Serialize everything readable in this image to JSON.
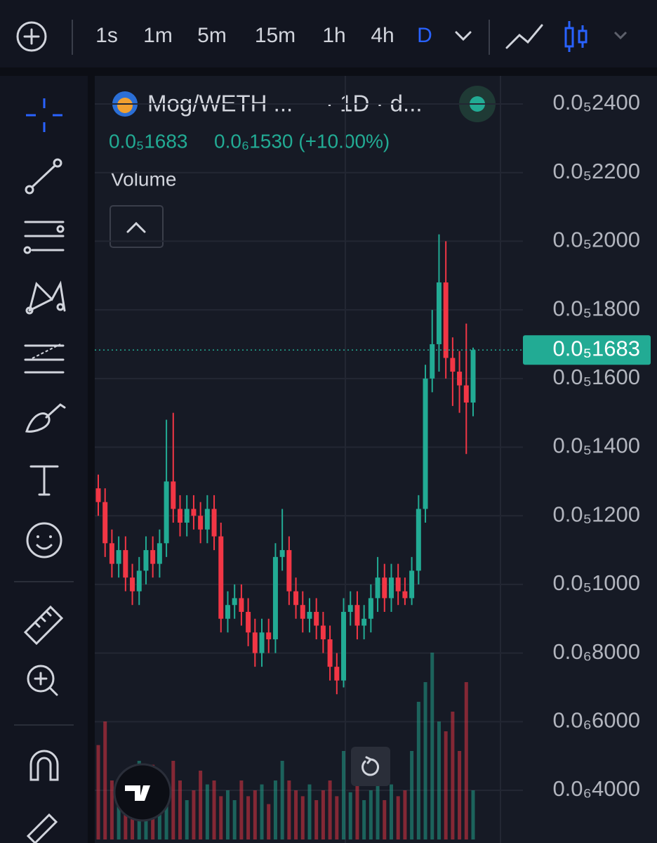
{
  "toolbar": {
    "intervals": [
      "1s",
      "1m",
      "5m",
      "15m",
      "1h",
      "4h",
      "D"
    ]
  },
  "legend": {
    "symbol": "Mog/WETH ...",
    "interval": "· 1D · d...",
    "price": "0.0₅1683",
    "change": "0.0₆1530 (+10.00%)",
    "indicator": "Volume"
  },
  "chart_data": {
    "type": "candlestick",
    "up_color": "#22ab94",
    "down_color": "#f23645",
    "grid": true,
    "ylim": [
      2.465e-07,
      2.4983e-06
    ],
    "yticks": [
      {
        "value": 2.4e-06,
        "label": "0.0₅2400"
      },
      {
        "value": 2.2e-06,
        "label": "0.0₅2200"
      },
      {
        "value": 2e-06,
        "label": "0.0₅2000"
      },
      {
        "value": 1.8e-06,
        "label": "0.0₅1800"
      },
      {
        "value": 1.6e-06,
        "label": "0.0₅1600"
      },
      {
        "value": 1.4e-06,
        "label": "0.0₅1400"
      },
      {
        "value": 1.2e-06,
        "label": "0.0₅1200"
      },
      {
        "value": 1e-06,
        "label": "0.0₅1000"
      },
      {
        "value": 8e-07,
        "label": "0.0₆8000"
      },
      {
        "value": 6e-07,
        "label": "0.0₆6000"
      },
      {
        "value": 4e-07,
        "label": "0.0₆4000"
      }
    ],
    "last_price": {
      "value": 1.683e-06,
      "label": "0.0₅1683"
    },
    "open": [
      1.28e-06,
      1.24e-06,
      1.12e-06,
      1.06e-06,
      1.1e-06,
      1.02e-06,
      9.8e-07,
      1.04e-06,
      1.1e-06,
      1.06e-06,
      1.12e-06,
      1.3e-06,
      1.22e-06,
      1.18e-06,
      1.22e-06,
      1.2e-06,
      1.16e-06,
      1.22e-06,
      1.14e-06,
      9e-07,
      9.4e-07,
      9.6e-07,
      9.2e-07,
      8.6e-07,
      8e-07,
      8.6e-07,
      8.4e-07,
      1.08e-06,
      1.1e-06,
      9.8e-07,
      9.4e-07,
      9e-07,
      9.2e-07,
      8.8e-07,
      8.4e-07,
      7.6e-07,
      7.2e-07,
      9.2e-07,
      9.4e-07,
      8.8e-07,
      9e-07,
      9.6e-07,
      1.02e-06,
      9.6e-07,
      1.02e-06,
      9.8e-07,
      9.6e-07,
      1.04e-06,
      1.22e-06,
      1.6e-06,
      1.7e-06,
      1.88e-06,
      1.66e-06,
      1.62e-06,
      1.58e-06,
      1.53e-06
    ],
    "high": [
      1.32e-06,
      1.28e-06,
      1.16e-06,
      1.14e-06,
      1.14e-06,
      1.06e-06,
      1.08e-06,
      1.14e-06,
      1.14e-06,
      1.16e-06,
      1.48e-06,
      1.5e-06,
      1.26e-06,
      1.26e-06,
      1.26e-06,
      1.24e-06,
      1.26e-06,
      1.26e-06,
      1.18e-06,
      9.8e-07,
      1e-06,
      1e-06,
      9.6e-07,
      9e-07,
      9e-07,
      9e-07,
      1.12e-06,
      1.22e-06,
      1.14e-06,
      1.02e-06,
      9.8e-07,
      9.6e-07,
      9.6e-07,
      9.2e-07,
      8.8e-07,
      8e-07,
      9.6e-07,
      9.8e-07,
      9.8e-07,
      9.4e-07,
      1e-06,
      1.08e-06,
      1.06e-06,
      1.06e-06,
      1.06e-06,
      1.02e-06,
      1.08e-06,
      1.26e-06,
      1.64e-06,
      1.8e-06,
      2.02e-06,
      2e-06,
      1.72e-06,
      1.68e-06,
      1.76e-06,
      1.69e-06
    ],
    "low": [
      1.2e-06,
      1.08e-06,
      1.02e-06,
      1.02e-06,
      9.8e-07,
      9.4e-07,
      9.4e-07,
      1e-06,
      1.02e-06,
      1.02e-06,
      1.08e-06,
      1.18e-06,
      1.14e-06,
      1.14e-06,
      1.16e-06,
      1.12e-06,
      1.12e-06,
      1.1e-06,
      8.6e-07,
      8.6e-07,
      9e-07,
      8.8e-07,
      8.2e-07,
      7.6e-07,
      7.6e-07,
      8e-07,
      8e-07,
      1.04e-06,
      9.4e-07,
      9e-07,
      8.6e-07,
      8.6e-07,
      8.4e-07,
      8e-07,
      7.2e-07,
      6.8e-07,
      7e-07,
      8.8e-07,
      8.4e-07,
      8.4e-07,
      8.6e-07,
      9.2e-07,
      9.2e-07,
      9.2e-07,
      9.4e-07,
      9.4e-07,
      9.4e-07,
      1e-06,
      1.18e-06,
      1.56e-06,
      1.62e-06,
      1.6e-06,
      1.52e-06,
      1.5e-06,
      1.38e-06,
      1.49e-06
    ],
    "close": [
      1.24e-06,
      1.12e-06,
      1.06e-06,
      1.1e-06,
      1.02e-06,
      9.8e-07,
      1.04e-06,
      1.1e-06,
      1.06e-06,
      1.12e-06,
      1.3e-06,
      1.22e-06,
      1.18e-06,
      1.22e-06,
      1.2e-06,
      1.16e-06,
      1.22e-06,
      1.14e-06,
      9e-07,
      9.4e-07,
      9.6e-07,
      9.2e-07,
      8.6e-07,
      8e-07,
      8.6e-07,
      8.4e-07,
      1.08e-06,
      1.1e-06,
      9.8e-07,
      9.4e-07,
      9e-07,
      9.2e-07,
      8.8e-07,
      8.4e-07,
      7.6e-07,
      7.2e-07,
      9.2e-07,
      9.4e-07,
      8.8e-07,
      9e-07,
      9.6e-07,
      1.02e-06,
      9.6e-07,
      1.02e-06,
      9.8e-07,
      9.6e-07,
      1.04e-06,
      1.22e-06,
      1.6e-06,
      1.7e-06,
      1.88e-06,
      1.66e-06,
      1.62e-06,
      1.58e-06,
      1.53e-06,
      1.683e-06
    ],
    "volume": [
      48,
      60,
      30,
      25,
      35,
      20,
      40,
      22,
      38,
      30,
      25,
      40,
      30,
      20,
      25,
      35,
      28,
      30,
      22,
      25,
      20,
      30,
      22,
      25,
      28,
      18,
      30,
      40,
      30,
      25,
      22,
      28,
      20,
      25,
      30,
      22,
      45,
      24,
      30,
      20,
      25,
      30,
      20,
      28,
      22,
      25,
      45,
      70,
      80,
      95,
      60,
      55,
      65,
      45,
      80,
      25
    ],
    "volume_lim": [
      0,
      100
    ]
  }
}
